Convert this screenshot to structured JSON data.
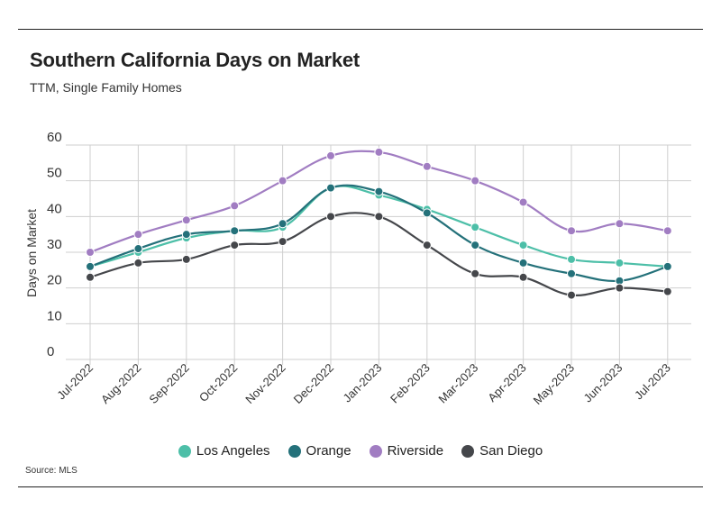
{
  "header": {
    "title": "Southern California Days on Market",
    "subtitle": "TTM, Single Family Homes"
  },
  "footer": {
    "source": "Source: MLS"
  },
  "chart_data": {
    "type": "line",
    "ylabel": "Days on Market",
    "ylim": [
      0,
      60
    ],
    "yticks": [
      0,
      10,
      20,
      30,
      40,
      50,
      60
    ],
    "grid": true,
    "legend_position": "bottom",
    "categories": [
      "Jul-2022",
      "Aug-2022",
      "Sep-2022",
      "Oct-2022",
      "Nov-2022",
      "Dec-2022",
      "Jan-2023",
      "Feb-2023",
      "Mar-2023",
      "Apr-2023",
      "May-2023",
      "Jun-2023",
      "Jul-2023"
    ],
    "series": [
      {
        "name": "Los Angeles",
        "color": "#4dbfa8",
        "values": [
          26,
          30,
          34,
          36,
          37,
          48,
          46,
          42,
          37,
          32,
          28,
          27,
          26
        ]
      },
      {
        "name": "Orange",
        "color": "#24717a",
        "values": [
          26,
          31,
          35,
          36,
          38,
          48,
          47,
          41,
          32,
          27,
          24,
          22,
          26
        ]
      },
      {
        "name": "Riverside",
        "color": "#a17dc2",
        "values": [
          30,
          35,
          39,
          43,
          50,
          57,
          58,
          54,
          50,
          44,
          36,
          38,
          36
        ]
      },
      {
        "name": "San Diego",
        "color": "#45474b",
        "values": [
          23,
          27,
          28,
          32,
          33,
          40,
          40,
          32,
          24,
          23,
          18,
          20,
          19
        ]
      }
    ]
  }
}
